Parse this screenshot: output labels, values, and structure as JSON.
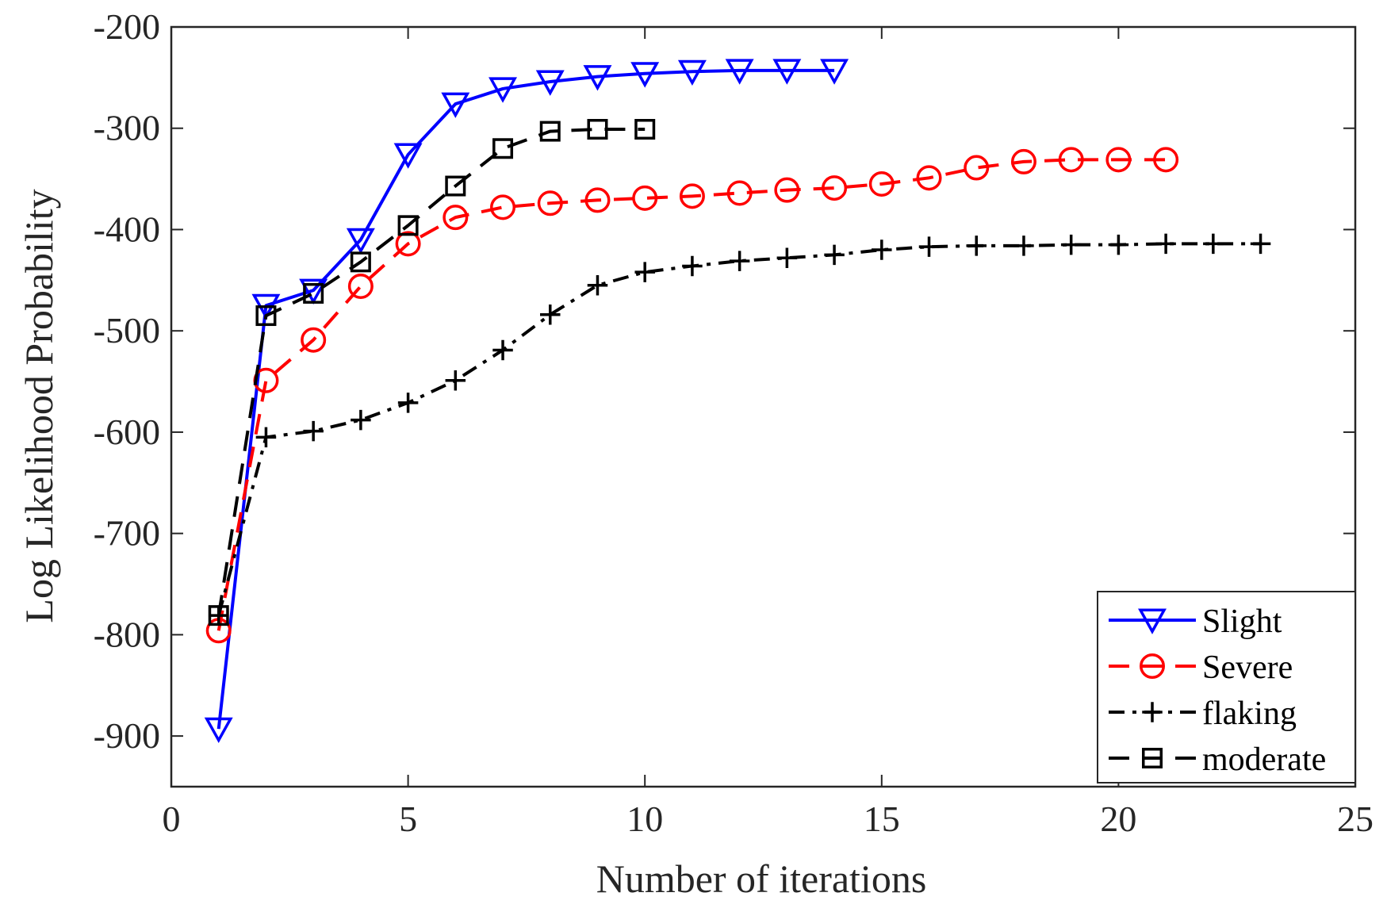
{
  "chart_data": {
    "type": "line",
    "title": "",
    "xlabel": "Number of iterations",
    "ylabel": "Log Likelihood Probability",
    "xlim": [
      0,
      25
    ],
    "ylim": [
      -950,
      -200
    ],
    "xticks": [
      "0",
      "5",
      "10",
      "15",
      "20",
      "25"
    ],
    "yticks": [
      "-200",
      "-300",
      "-400",
      "-500",
      "-600",
      "-700",
      "-800",
      "-900"
    ],
    "legend_position": "bottom-right",
    "series": [
      {
        "name": "Slight",
        "color": "#0000ff",
        "marker": "triangle-down",
        "linestyle": "solid",
        "x": [
          1,
          2,
          3,
          4,
          5,
          6,
          7,
          8,
          9,
          10,
          11,
          12,
          13,
          14
        ],
        "values": [
          -893,
          -475,
          -460,
          -410,
          -326,
          -276,
          -261,
          -254,
          -249,
          -246,
          -244,
          -243,
          -243,
          -243
        ]
      },
      {
        "name": "Severe",
        "color": "#ff0000",
        "marker": "circle",
        "linestyle": "dashed",
        "x": [
          1,
          2,
          3,
          4,
          5,
          6,
          7,
          8,
          9,
          10,
          11,
          12,
          13,
          14,
          15,
          16,
          17,
          18,
          19,
          20,
          21
        ],
        "values": [
          -796,
          -549,
          -509,
          -456,
          -414,
          -388,
          -378,
          -374,
          -371,
          -369,
          -367,
          -364,
          -361,
          -359,
          -355,
          -349,
          -339,
          -333,
          -331,
          -331,
          -331
        ]
      },
      {
        "name": "flaking",
        "color": "#000000",
        "marker": "plus",
        "linestyle": "dashdot",
        "x": [
          1,
          2,
          3,
          4,
          5,
          6,
          7,
          8,
          9,
          10,
          11,
          12,
          13,
          14,
          15,
          16,
          17,
          18,
          19,
          20,
          21,
          22,
          23
        ],
        "values": [
          -781,
          -605,
          -599,
          -588,
          -571,
          -549,
          -519,
          -484,
          -455,
          -442,
          -436,
          -431,
          -428,
          -425,
          -420,
          -417,
          -416,
          -416,
          -415,
          -415,
          -414,
          -414,
          -414
        ]
      },
      {
        "name": "moderate",
        "color": "#000000",
        "marker": "square",
        "linestyle": "dashed",
        "x": [
          1,
          2,
          3,
          4,
          5,
          6,
          7,
          8,
          9,
          10
        ],
        "values": [
          -781,
          -485,
          -463,
          -432,
          -396,
          -357,
          -320,
          -303,
          -301,
          -301
        ]
      }
    ]
  }
}
